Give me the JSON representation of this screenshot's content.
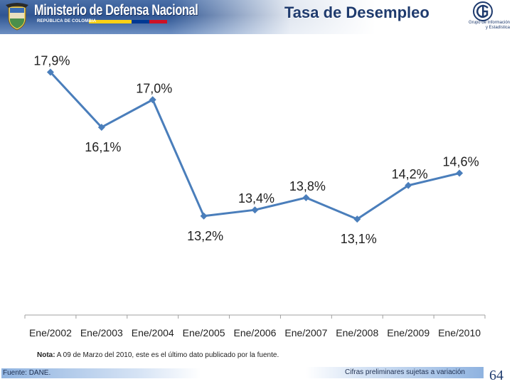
{
  "header": {
    "ministry_title": "Ministerio de Defensa Nacional",
    "ministry_subtitle": "REPÚBLICA DE COLOMBIA",
    "slide_title": "Tasa de Desempleo",
    "logo_text_line1": "Grupo de Información",
    "logo_text_line2": "y Estadística",
    "flag_colors": [
      "#fcd116",
      "#003893",
      "#ce1126"
    ]
  },
  "chart_data": {
    "type": "line",
    "title": "",
    "xlabel": "",
    "ylabel": "",
    "categories": [
      "Ene/2002",
      "Ene/2003",
      "Ene/2004",
      "Ene/2005",
      "Ene/2006",
      "Ene/2007",
      "Ene/2008",
      "Ene/2009",
      "Ene/2010"
    ],
    "series": [
      {
        "values": [
          17.9,
          16.1,
          17.0,
          13.2,
          13.4,
          13.8,
          13.1,
          14.2,
          14.6
        ],
        "labels": [
          "17,9%",
          "16,1%",
          "17,0%",
          "13,2%",
          "13,4%",
          "13,8%",
          "13,1%",
          "14,2%",
          "14,6%"
        ],
        "color": "#4a7ebb"
      }
    ],
    "ylim": [
      10.5,
      18.4
    ],
    "grid": false,
    "legend": "none",
    "label_side": [
      "above",
      "below",
      "above",
      "below",
      "above",
      "above",
      "below",
      "above",
      "above"
    ]
  },
  "note": {
    "prefix": "Nota:",
    "text": " A 09 de Marzo del 2010, este es el último dato publicado por la fuente."
  },
  "footer": {
    "source": "Fuente: DANE.",
    "disclaimer": "Cifras preliminares sujetas a variación",
    "page_number": "64"
  }
}
